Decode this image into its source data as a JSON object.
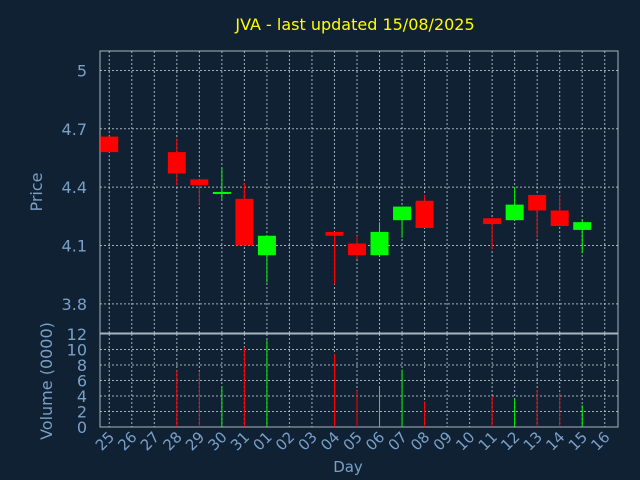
{
  "chart_data": {
    "type": "candlestick",
    "title": "JVA - last updated 15/08/2025",
    "xlabel": "Day",
    "categories": [
      "25",
      "26",
      "27",
      "28",
      "29",
      "30",
      "31",
      "01",
      "02",
      "03",
      "04",
      "05",
      "06",
      "07",
      "08",
      "09",
      "10",
      "11",
      "12",
      "13",
      "14",
      "15",
      "16"
    ],
    "price_panel": {
      "ylabel": "Price",
      "ylim": [
        3.65,
        5.1
      ],
      "yticks": [
        "5",
        "4.7",
        "4.4",
        "4.1",
        "3.8"
      ],
      "ytick_values": [
        5.0,
        4.7,
        4.4,
        4.1,
        3.8
      ],
      "grid": true
    },
    "volume_panel": {
      "ylabel": "Volume (0000)",
      "ylim": [
        0,
        12
      ],
      "yticks": [
        "12",
        "10",
        "8",
        "6",
        "4",
        "2",
        "0"
      ],
      "ytick_values": [
        12,
        10,
        8,
        6,
        4,
        2,
        0
      ],
      "grid": true
    },
    "up_color": "#00ff00",
    "down_color": "#ff0000",
    "title_color": "#ffff00",
    "text_color": "#7aa0c8",
    "candles": [
      {
        "day": "25",
        "open": 4.66,
        "high": 4.66,
        "low": 4.58,
        "close": 4.58,
        "volume": 5.0
      },
      {
        "day": "28",
        "open": 4.58,
        "high": 4.65,
        "low": 4.41,
        "close": 4.47,
        "volume": 7.3
      },
      {
        "day": "29",
        "open": 4.44,
        "high": 4.44,
        "low": 4.31,
        "close": 4.41,
        "volume": 7.2
      },
      {
        "day": "30",
        "open": 4.36,
        "high": 4.5,
        "low": 4.34,
        "close": 4.37,
        "volume": 5.2
      },
      {
        "day": "31",
        "open": 4.34,
        "high": 4.42,
        "low": 4.1,
        "close": 4.1,
        "volume": 10.3
      },
      {
        "day": "01",
        "open": 4.05,
        "high": 4.15,
        "low": 3.91,
        "close": 4.15,
        "volume": 11.2
      },
      {
        "day": "04",
        "open": 4.17,
        "high": 4.17,
        "low": 3.9,
        "close": 4.15,
        "volume": 9.4
      },
      {
        "day": "05",
        "open": 4.11,
        "high": 4.15,
        "low": 4.03,
        "close": 4.05,
        "volume": 4.7
      },
      {
        "day": "06",
        "open": 4.05,
        "high": 4.22,
        "low": 4.05,
        "close": 4.17,
        "volume": 5.1
      },
      {
        "day": "07",
        "open": 4.23,
        "high": 4.3,
        "low": 4.14,
        "close": 4.3,
        "volume": 7.4
      },
      {
        "day": "08",
        "open": 4.33,
        "high": 4.36,
        "low": 4.19,
        "close": 4.19,
        "volume": 3.3
      },
      {
        "day": "11",
        "open": 4.24,
        "high": 4.24,
        "low": 4.08,
        "close": 4.21,
        "volume": 4.0
      },
      {
        "day": "12",
        "open": 4.23,
        "high": 4.4,
        "low": 4.23,
        "close": 4.31,
        "volume": 3.6
      },
      {
        "day": "13",
        "open": 4.36,
        "high": 4.36,
        "low": 4.14,
        "close": 4.28,
        "volume": 4.8
      },
      {
        "day": "14",
        "open": 4.28,
        "high": 4.36,
        "low": 4.2,
        "close": 4.2,
        "volume": 4.4
      },
      {
        "day": "15",
        "open": 4.18,
        "high": 4.23,
        "low": 4.06,
        "close": 4.22,
        "volume": 2.8
      }
    ]
  }
}
